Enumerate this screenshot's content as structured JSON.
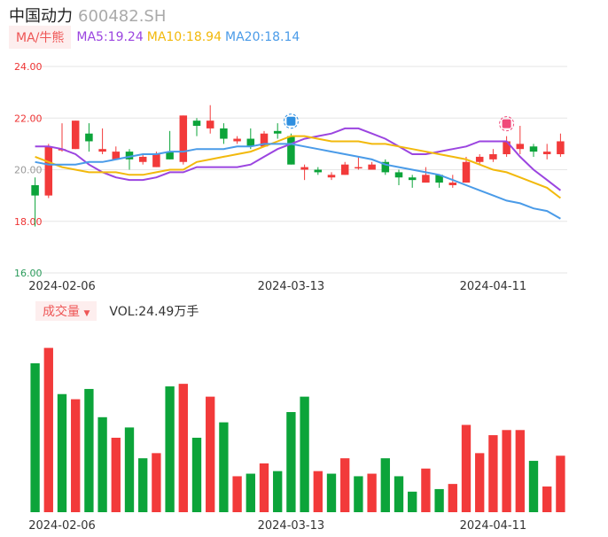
{
  "header": {
    "name": "中国动力",
    "code": "600482.SH"
  },
  "ma_legend": {
    "button_label": "MA/牛熊",
    "items": [
      {
        "label": "MA5:19.24",
        "color": "#9b45e0"
      },
      {
        "label": "MA10:18.94",
        "color": "#f2b90c"
      },
      {
        "label": "MA20:18.14",
        "color": "#4a9be8"
      }
    ]
  },
  "volume_legend": {
    "button_label": "成交量",
    "text": "VOL:24.49万手"
  },
  "colors": {
    "up": "#f23a3a",
    "down": "#0ca43a",
    "grid": "#e6e6e6",
    "axis_label": "#e33",
    "axis_label_low": "#2a9a5a"
  },
  "markers": [
    {
      "icon": "blue-diamond-badge-icon",
      "index": 19,
      "color": "#2f8fe0"
    },
    {
      "icon": "red-sell-badge-icon",
      "index": 35,
      "color": "#f04a7a"
    }
  ],
  "chart_data": [
    {
      "type": "candlestick",
      "ylim": [
        16,
        24
      ],
      "yticks": [
        "24.00",
        "22.00",
        "20.00",
        "18.00",
        "16.00"
      ],
      "xticks": [
        "2024-02-06",
        "2024-03-13",
        "2024-04-11"
      ],
      "xtick_index": [
        2,
        19,
        34
      ],
      "candles": [
        [
          19.4,
          19.0,
          19.7,
          17.8
        ],
        [
          19.0,
          20.9,
          21.0,
          18.9
        ],
        [
          20.8,
          20.8,
          21.8,
          20.7
        ],
        [
          20.8,
          21.9,
          21.9,
          20.8
        ],
        [
          21.4,
          21.1,
          21.8,
          20.7
        ],
        [
          20.7,
          20.8,
          21.6,
          20.6
        ],
        [
          20.4,
          20.7,
          20.9,
          20.4
        ],
        [
          20.7,
          20.4,
          20.8,
          20.0
        ],
        [
          20.3,
          20.5,
          20.6,
          20.2
        ],
        [
          20.1,
          20.6,
          20.7,
          20.1
        ],
        [
          20.7,
          20.4,
          21.5,
          20.4
        ],
        [
          20.3,
          22.1,
          22.1,
          20.2
        ],
        [
          21.9,
          21.7,
          22.0,
          21.3
        ],
        [
          21.6,
          21.9,
          22.5,
          21.4
        ],
        [
          21.6,
          21.2,
          21.8,
          21.0
        ],
        [
          21.1,
          21.2,
          21.3,
          21.0
        ],
        [
          21.2,
          20.9,
          21.6,
          20.8
        ],
        [
          20.9,
          21.4,
          21.5,
          20.9
        ],
        [
          21.5,
          21.4,
          21.8,
          21.2
        ],
        [
          21.3,
          20.2,
          21.4,
          20.2
        ],
        [
          20.0,
          20.1,
          20.2,
          19.6
        ],
        [
          20.0,
          19.9,
          20.1,
          19.8
        ],
        [
          19.7,
          19.8,
          19.9,
          19.6
        ],
        [
          19.8,
          20.2,
          20.3,
          19.8
        ],
        [
          20.1,
          20.1,
          20.5,
          20.0
        ],
        [
          20.0,
          20.2,
          20.3,
          20.0
        ],
        [
          20.3,
          19.9,
          20.4,
          19.8
        ],
        [
          19.9,
          19.7,
          20.0,
          19.4
        ],
        [
          19.7,
          19.6,
          19.8,
          19.3
        ],
        [
          19.5,
          19.8,
          20.1,
          19.5
        ],
        [
          19.8,
          19.5,
          19.8,
          19.3
        ],
        [
          19.4,
          19.5,
          19.8,
          19.3
        ],
        [
          19.5,
          20.3,
          20.5,
          19.5
        ],
        [
          20.3,
          20.5,
          20.6,
          20.2
        ],
        [
          20.4,
          20.6,
          20.8,
          20.3
        ],
        [
          20.6,
          21.1,
          21.3,
          20.5
        ],
        [
          20.8,
          21.0,
          21.7,
          20.6
        ],
        [
          20.9,
          20.7,
          21.0,
          20.5
        ],
        [
          20.6,
          20.7,
          21.0,
          20.4
        ],
        [
          20.6,
          21.1,
          21.4,
          20.5
        ]
      ],
      "series": [
        {
          "name": "MA5",
          "color": "#9b45e0",
          "values": [
            20.9,
            20.9,
            20.8,
            20.6,
            20.2,
            19.9,
            19.7,
            19.6,
            19.6,
            19.7,
            19.9,
            19.9,
            20.1,
            20.1,
            20.1,
            20.1,
            20.2,
            20.5,
            20.8,
            21.0,
            21.2,
            21.3,
            21.4,
            21.6,
            21.6,
            21.4,
            21.2,
            20.9,
            20.6,
            20.6,
            20.7,
            20.8,
            20.9,
            21.1,
            21.1,
            21.1,
            20.5,
            20.0,
            19.6,
            19.2
          ]
        },
        {
          "name": "MA10",
          "color": "#f2b90c",
          "values": [
            20.5,
            20.3,
            20.1,
            20.0,
            19.9,
            19.9,
            19.9,
            19.8,
            19.8,
            19.9,
            20.0,
            20.0,
            20.3,
            20.4,
            20.5,
            20.6,
            20.7,
            20.9,
            21.1,
            21.3,
            21.3,
            21.2,
            21.1,
            21.1,
            21.1,
            21.0,
            21.0,
            20.9,
            20.8,
            20.7,
            20.6,
            20.5,
            20.4,
            20.2,
            20.0,
            19.9,
            19.7,
            19.5,
            19.3,
            18.9
          ]
        },
        {
          "name": "MA20",
          "color": "#4a9be8",
          "values": [
            20.3,
            20.2,
            20.2,
            20.2,
            20.3,
            20.3,
            20.4,
            20.5,
            20.6,
            20.6,
            20.7,
            20.7,
            20.8,
            20.8,
            20.8,
            20.9,
            20.9,
            21.0,
            21.0,
            21.0,
            20.9,
            20.8,
            20.7,
            20.6,
            20.5,
            20.4,
            20.2,
            20.1,
            20.0,
            19.9,
            19.8,
            19.6,
            19.4,
            19.2,
            19.0,
            18.8,
            18.7,
            18.5,
            18.4,
            18.1
          ]
        }
      ]
    },
    {
      "type": "bar",
      "xticks": [
        "2024-02-06",
        "2024-03-13",
        "2024-04-11"
      ],
      "xtick_index": [
        2,
        19,
        34
      ],
      "values": [
        58,
        64,
        46,
        44,
        48,
        37,
        29,
        33,
        21,
        23,
        49,
        50,
        29,
        45,
        35,
        14,
        15,
        19,
        16,
        39,
        45,
        16,
        15,
        21,
        14,
        15,
        21,
        14,
        8,
        17,
        9,
        11,
        34,
        23,
        30,
        32,
        32,
        20,
        10,
        22
      ],
      "directions": [
        "down",
        "up",
        "down",
        "up",
        "down",
        "down",
        "up",
        "down",
        "down",
        "up",
        "down",
        "up",
        "down",
        "up",
        "down",
        "up",
        "down",
        "up",
        "down",
        "down",
        "down",
        "up",
        "down",
        "up",
        "down",
        "up",
        "down",
        "down",
        "down",
        "up",
        "down",
        "up",
        "up",
        "up",
        "up",
        "up",
        "up",
        "down",
        "up",
        "up"
      ]
    }
  ]
}
